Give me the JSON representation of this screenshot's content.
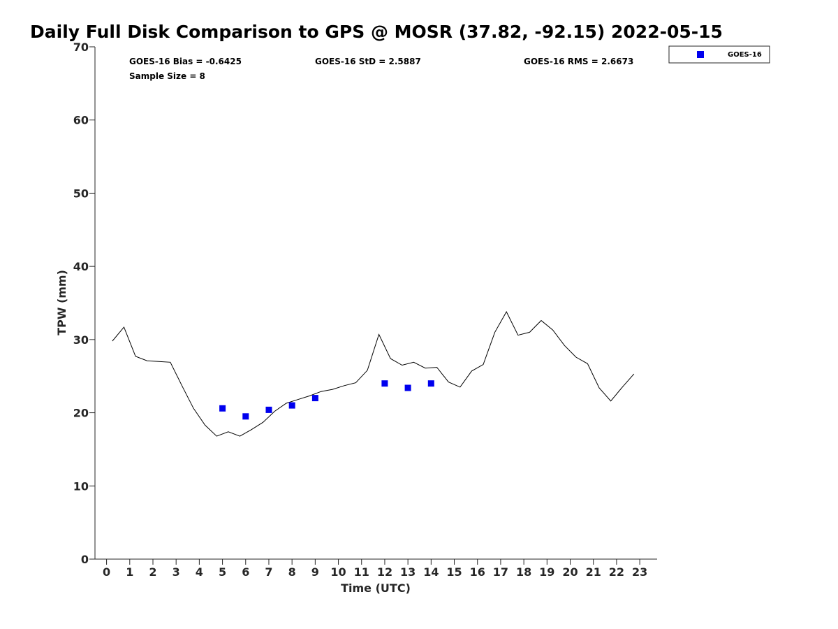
{
  "chart_data": {
    "type": "scatter",
    "title": "Daily Full Disk Comparison to GPS @ MOSR (37.82, -92.15) 2022-05-15",
    "xlabel": "Time (UTC)",
    "ylabel": "TPW (mm)",
    "xlim": [
      -0.5,
      23.75
    ],
    "ylim": [
      0,
      70
    ],
    "x_ticks": [
      0,
      1,
      2,
      3,
      4,
      5,
      6,
      7,
      8,
      9,
      10,
      11,
      12,
      13,
      14,
      15,
      16,
      17,
      18,
      19,
      20,
      21,
      22,
      23
    ],
    "y_ticks": [
      0,
      10,
      20,
      30,
      40,
      50,
      60,
      70
    ],
    "grid": false,
    "legend_position": "top-right, outside plot area",
    "stats": {
      "bias": "GOES-16 Bias = -0.6425",
      "std": "GOES-16 StD = 2.5887",
      "rms": "GOES-16 RMS = 2.6673",
      "sample_size": "Sample Size = 8"
    },
    "series": [
      {
        "name": "GPS",
        "kind": "line",
        "color": "#000000",
        "in_legend": false,
        "x": [
          0.25,
          0.75,
          1.25,
          1.75,
          2.25,
          2.75,
          3.25,
          3.75,
          4.25,
          4.75,
          5.25,
          5.75,
          6.25,
          6.75,
          7.25,
          7.75,
          8.25,
          8.75,
          9.25,
          9.75,
          10.25,
          10.75,
          11.25,
          11.75,
          12.25,
          12.75,
          13.25,
          13.75,
          14.25,
          14.75,
          15.25,
          15.75,
          16.25,
          16.75,
          17.25,
          17.75,
          18.25,
          18.75,
          19.25,
          19.75,
          20.25,
          20.75,
          21.25,
          21.75,
          22.25,
          22.75
        ],
        "y": [
          29.8,
          31.7,
          27.7,
          27.1,
          27.0,
          26.9,
          23.7,
          20.6,
          18.3,
          16.8,
          17.4,
          16.8,
          17.7,
          18.7,
          20.2,
          21.3,
          21.8,
          22.3,
          22.9,
          23.2,
          23.7,
          24.1,
          25.8,
          30.7,
          27.4,
          26.5,
          26.9,
          26.1,
          26.2,
          24.2,
          23.5,
          25.7,
          26.6,
          31.0,
          33.8,
          30.6,
          31.0,
          32.6,
          31.3,
          29.2,
          27.6,
          26.7,
          23.4,
          21.6,
          23.5,
          25.3
        ]
      },
      {
        "name": "GOES-16",
        "kind": "scatter",
        "marker": "square",
        "color": "#0000ee",
        "in_legend": true,
        "x": [
          5,
          6,
          7,
          8,
          9,
          12,
          13,
          14
        ],
        "y": [
          20.6,
          19.5,
          20.4,
          21.0,
          22.0,
          24.0,
          23.4,
          24.0
        ]
      }
    ]
  }
}
